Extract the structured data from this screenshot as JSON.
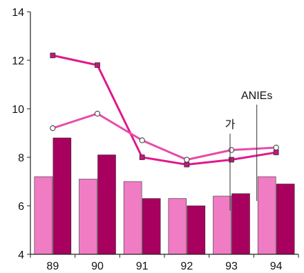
{
  "chart_data": {
    "type": "bar",
    "categories": [
      "89",
      "90",
      "91",
      "92",
      "93",
      "94"
    ],
    "ylim": [
      4,
      14
    ],
    "yticks": [
      4,
      6,
      8,
      10,
      12,
      14
    ],
    "grid": false,
    "bar_series": [
      {
        "values": [
          7.2,
          7.1,
          7.0,
          6.3,
          6.4,
          7.2
        ],
        "color": "#f07cc3"
      },
      {
        "values": [
          8.8,
          8.1,
          6.3,
          6.0,
          6.5,
          6.9
        ],
        "color": "#a8005e"
      }
    ],
    "line_series": [
      {
        "values": [
          12.2,
          11.8,
          8.0,
          7.7,
          7.9,
          8.2
        ],
        "color": "#e0188c",
        "marker": "square"
      },
      {
        "values": [
          9.2,
          9.8,
          8.7,
          7.9,
          8.3,
          8.4
        ],
        "color": "#e84aa8",
        "marker": "circle"
      }
    ],
    "annotations": [
      {
        "text": "가",
        "category": "93",
        "value": 8.8
      },
      {
        "text": "ANIEs",
        "category": "94",
        "value": 10.0
      }
    ]
  }
}
